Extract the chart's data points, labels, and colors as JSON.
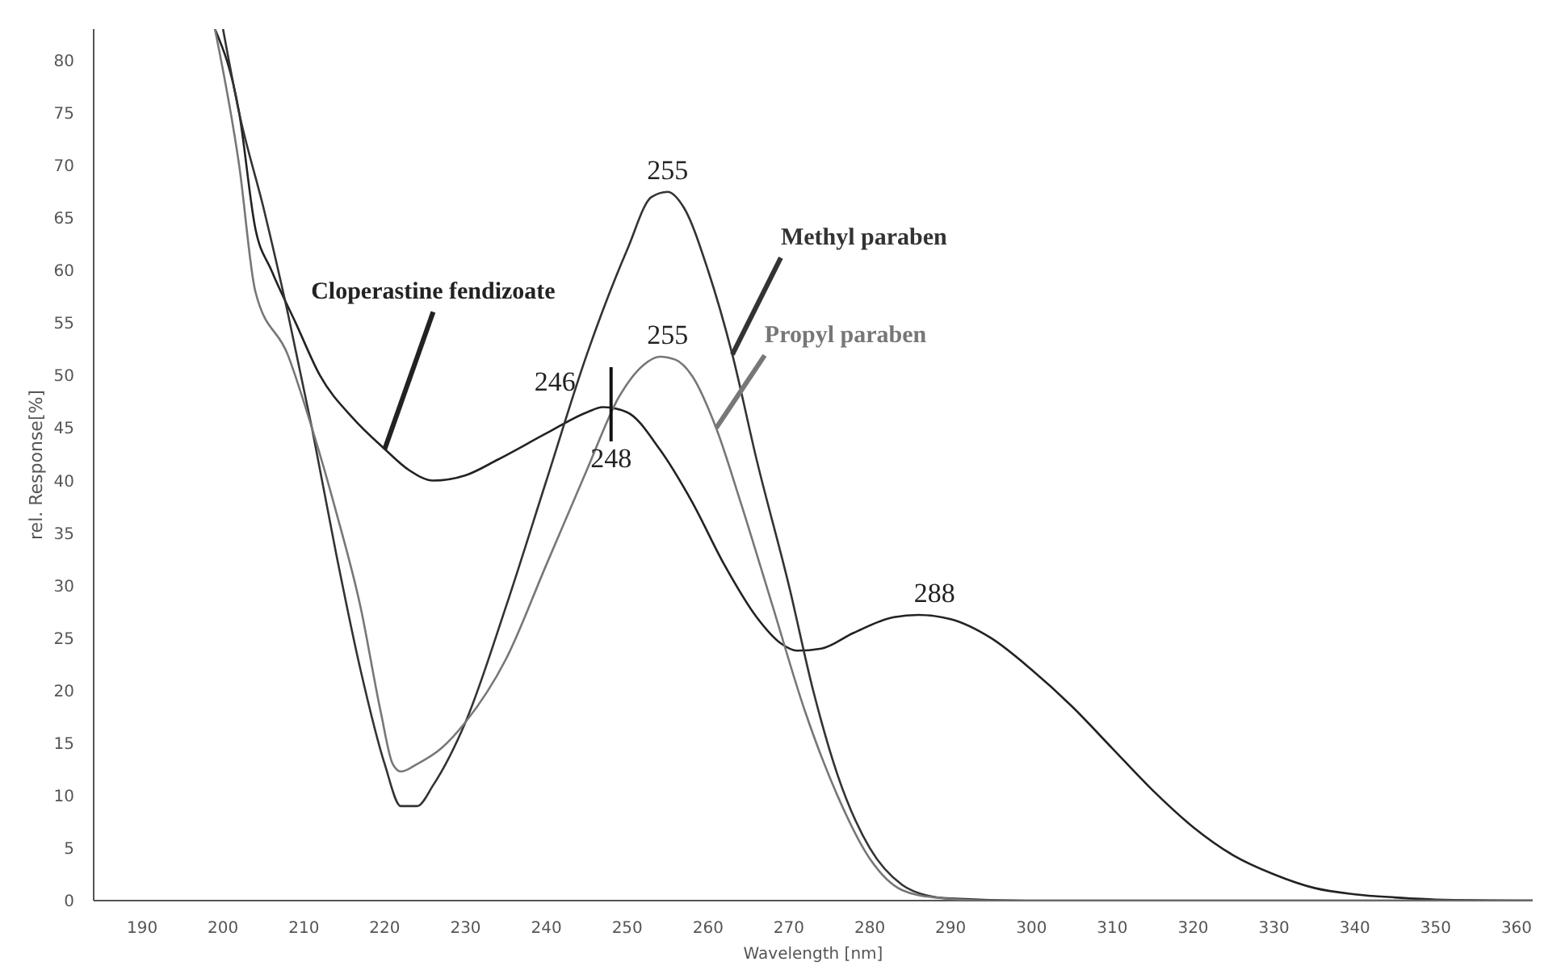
{
  "chart_data": {
    "type": "line",
    "xlabel": "Wavelength [nm]",
    "ylabel": "rel. Response[%]",
    "xlim": [
      184,
      362
    ],
    "ylim": [
      0,
      83
    ],
    "xticks": [
      190,
      200,
      210,
      220,
      230,
      240,
      250,
      260,
      270,
      280,
      290,
      300,
      310,
      320,
      330,
      340,
      350,
      360
    ],
    "yticks": [
      0,
      5,
      10,
      15,
      20,
      25,
      30,
      35,
      40,
      45,
      50,
      55,
      60,
      65,
      70,
      75,
      80
    ],
    "grid": false,
    "marker": "none",
    "line_style": "solid",
    "series": [
      {
        "name": "Cloperastine fendizoate",
        "color": "#222222",
        "x": [
          199,
          202,
          204,
          206,
          209,
          212,
          216,
          220,
          223,
          226,
          230,
          234,
          240,
          245,
          247,
          250,
          254,
          258,
          262,
          266,
          269,
          271,
          274,
          278,
          283,
          286,
          290,
          295,
          300,
          305,
          310,
          315,
          320,
          325,
          330,
          335,
          340,
          345,
          350,
          362
        ],
        "values": [
          83,
          75,
          64,
          60,
          55,
          50,
          46,
          43,
          41,
          40,
          40.5,
          42,
          44.5,
          46.5,
          47,
          46.5,
          43,
          38,
          32,
          27,
          24.5,
          23.8,
          24,
          25.5,
          27,
          27.2,
          26.8,
          25,
          22,
          18.5,
          14.5,
          10.5,
          7,
          4.3,
          2.5,
          1.2,
          0.6,
          0.3,
          0.1,
          0
        ]
      },
      {
        "name": "Methyl paraben",
        "color": "#333333",
        "x": [
          200,
          202,
          205,
          208,
          211,
          214,
          217,
          220,
          222,
          224,
          226,
          230,
          235,
          240,
          245,
          250,
          253,
          255,
          257,
          260,
          263,
          266,
          270,
          273,
          276,
          280,
          284,
          287,
          290,
          300,
          320,
          362
        ],
        "values": [
          83,
          75,
          66,
          56,
          45,
          33,
          22,
          13,
          9,
          9,
          11,
          17,
          28,
          40,
          52,
          62,
          67,
          67.5,
          66,
          60,
          52,
          42,
          30,
          20,
          12,
          5,
          1.5,
          0.5,
          0.2,
          0,
          0,
          0
        ]
      },
      {
        "name": "Propyl paraben",
        "color": "#777777",
        "x": [
          199,
          202,
          204,
          208,
          211,
          214,
          217,
          219.5,
          221,
          222,
          224,
          227,
          230,
          235,
          240,
          245,
          249,
          252,
          254,
          256,
          258,
          261,
          264,
          268,
          272,
          276,
          280,
          284,
          288,
          295,
          362
        ],
        "values": [
          83,
          70,
          58,
          52,
          45,
          37,
          28,
          18,
          13,
          12.3,
          13,
          14.5,
          17,
          23,
          32,
          41,
          48,
          51,
          51.8,
          51.5,
          50,
          45,
          38,
          28,
          18,
          10,
          4,
          1,
          0.3,
          0,
          0
        ]
      }
    ],
    "annotations": [
      {
        "text": "255",
        "x": 255,
        "y": 67.5
      },
      {
        "text": "255",
        "x": 255,
        "y": 51.8
      },
      {
        "text": "246",
        "x": 246,
        "y": 47
      },
      {
        "text": "248",
        "x": 248,
        "y": 46.5
      },
      {
        "text": "288",
        "x": 288,
        "y": 27.2
      }
    ]
  }
}
